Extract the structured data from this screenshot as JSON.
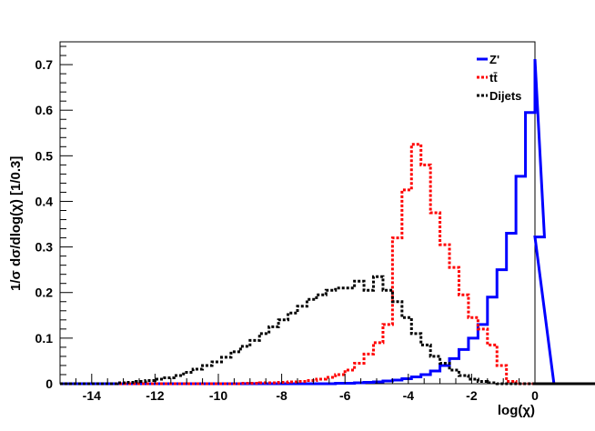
{
  "chart_data": {
    "type": "line",
    "style": "step-histogram",
    "xlabel": "log(χ)",
    "ylabel": "1/σ dσ/dlog(χ)  [1/0.3]",
    "xlim": [
      -15,
      0
    ],
    "ylim": [
      0,
      0.75
    ],
    "x_ticks": [
      -14,
      -12,
      -10,
      -8,
      -6,
      -4,
      -2,
      0
    ],
    "x_tick_labels": [
      "-14",
      "-12",
      "-10",
      "-8",
      "-6",
      "-4",
      "-2",
      "0"
    ],
    "y_ticks": [
      0,
      0.1,
      0.2,
      0.3,
      0.4,
      0.5,
      0.6,
      0.7
    ],
    "y_tick_labels": [
      "0",
      "0.1",
      "0.2",
      "0.3",
      "0.4",
      "0.5",
      "0.6",
      "0.7"
    ],
    "bin_width": 0.3,
    "grid": false,
    "legend_position": "top-right",
    "series": [
      {
        "name": "Z'",
        "color": "#0000ff",
        "dash": "solid",
        "bins_start": -15,
        "values": [
          0,
          0,
          0,
          0,
          0,
          0,
          0,
          0,
          0,
          0,
          0,
          0,
          0,
          0,
          0,
          0,
          0,
          0,
          0,
          0,
          0,
          0,
          0,
          0,
          0,
          0,
          0,
          0,
          0,
          0.001,
          0.001,
          0.002,
          0.003,
          0.004,
          0.006,
          0.008,
          0.011,
          0.015,
          0.02,
          0.028,
          0.04,
          0.055,
          0.075,
          0.1,
          0.13,
          0.19,
          0.25,
          0.33,
          0.455,
          0.595,
          0.712,
          0.322,
          0,
          0,
          0,
          0,
          0,
          0,
          0,
          0,
          0,
          0,
          0,
          0,
          0,
          0,
          0,
          0,
          0,
          0,
          0,
          0,
          0,
          0,
          0,
          0,
          0,
          0,
          0,
          0
        ]
      },
      {
        "name": "tt̄",
        "color": "#ff0000",
        "dash": "dotted",
        "bins_start": -15,
        "values": [
          0,
          0,
          0,
          0,
          0,
          0,
          0,
          0,
          0,
          0,
          0,
          0,
          0,
          0,
          0,
          0,
          0,
          0,
          0,
          0.001,
          0.001,
          0.002,
          0.002,
          0.003,
          0.004,
          0.005,
          0.007,
          0.01,
          0.014,
          0.02,
          0.03,
          0.045,
          0.065,
          0.09,
          0.13,
          0.32,
          0.425,
          0.525,
          0.48,
          0.375,
          0.305,
          0.255,
          0.195,
          0.145,
          0.12,
          0.085,
          0.04,
          0.005,
          0,
          0,
          0,
          0,
          0,
          0,
          0,
          0,
          0,
          0,
          0,
          0,
          0,
          0,
          0,
          0,
          0,
          0,
          0,
          0,
          0,
          0,
          0,
          0,
          0,
          0,
          0,
          0,
          0,
          0,
          0,
          0
        ]
      },
      {
        "name": "Dijets",
        "color": "#000000",
        "dash": "dotted",
        "bins_start": -15,
        "values": [
          0,
          0,
          0,
          0,
          0,
          0,
          0.002,
          0.003,
          0.005,
          0.007,
          0.01,
          0.013,
          0.018,
          0.025,
          0.032,
          0.04,
          0.048,
          0.058,
          0.07,
          0.082,
          0.095,
          0.11,
          0.125,
          0.14,
          0.155,
          0.17,
          0.185,
          0.195,
          0.205,
          0.21,
          0.21,
          0.225,
          0.205,
          0.235,
          0.205,
          0.18,
          0.145,
          0.11,
          0.085,
          0.06,
          0.045,
          0.03,
          0.018,
          0.01,
          0.005,
          0.002,
          0,
          0,
          0,
          0,
          0,
          0,
          0,
          0,
          0,
          0,
          0,
          0,
          0,
          0,
          0,
          0,
          0,
          0,
          0,
          0,
          0,
          0,
          0,
          0,
          0,
          0,
          0,
          0,
          0,
          0,
          0,
          0
        ]
      }
    ]
  }
}
